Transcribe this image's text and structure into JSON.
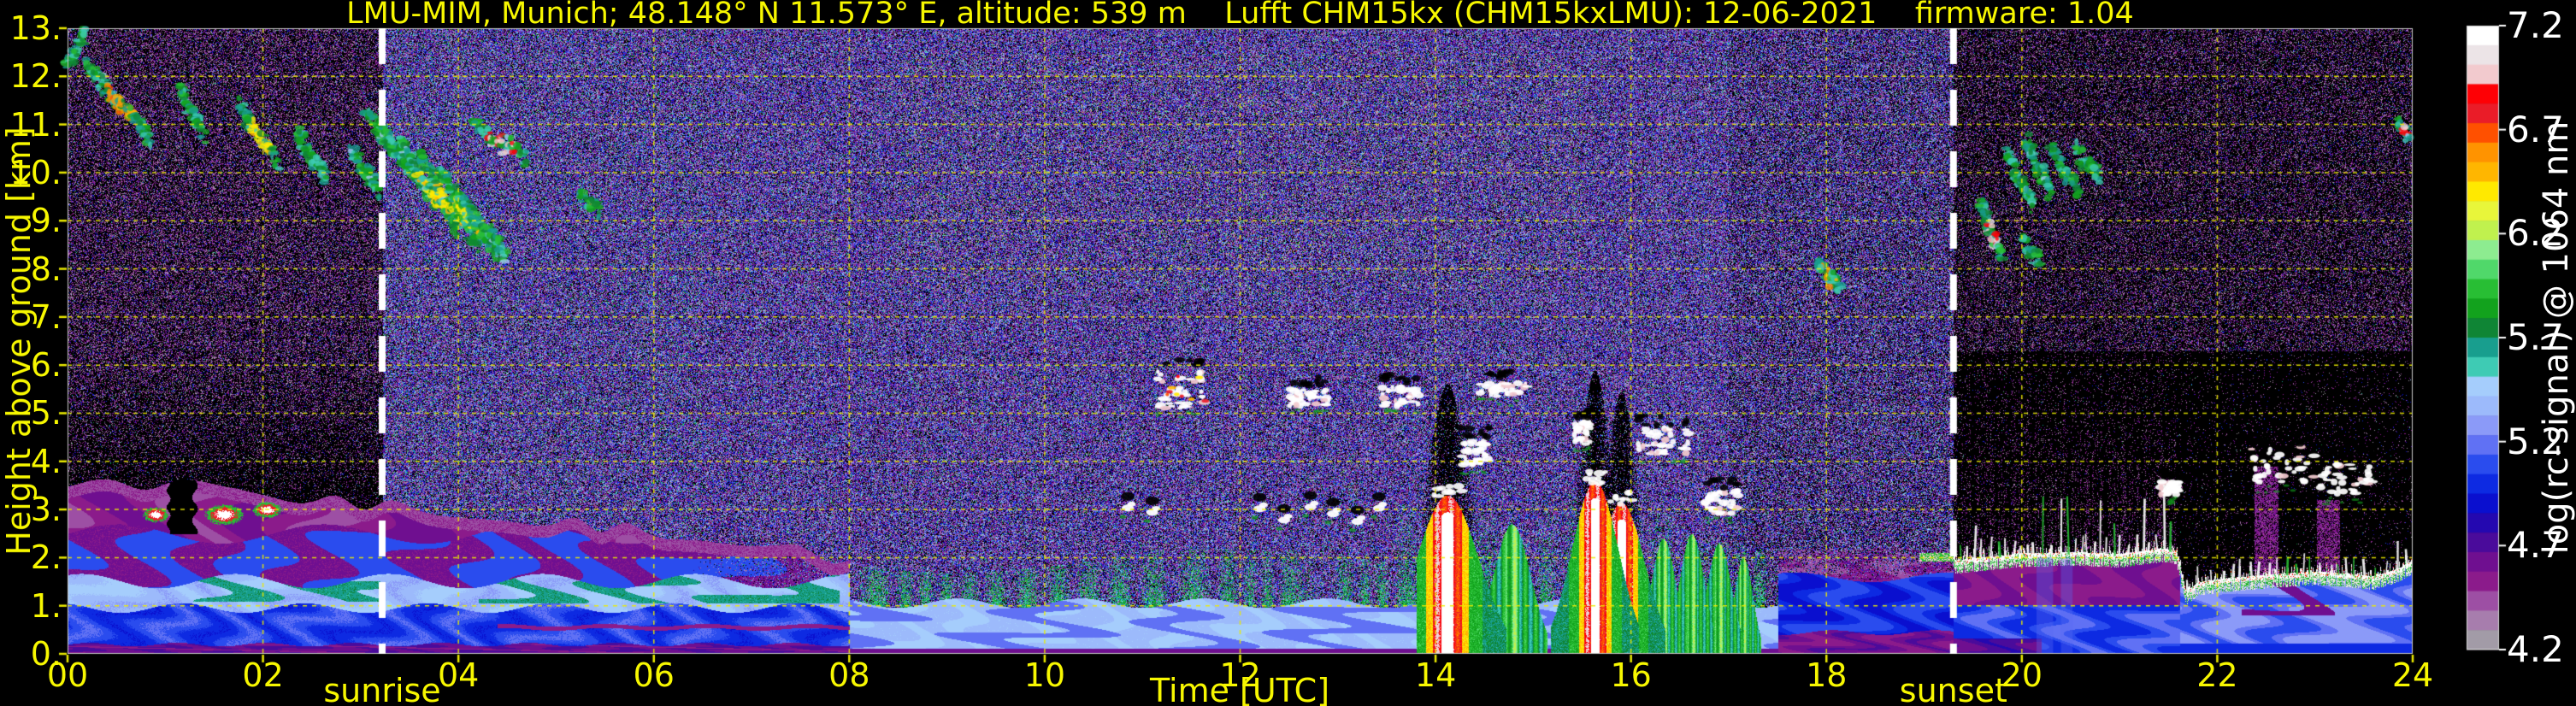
{
  "chart_data": {
    "type": "heatmap",
    "title": "LMU-MIM, Munich; 48.148° N 11.573° E, altitude: 539 m    Lufft CHM15kx (CHM15kxLMU): 12-06-2021    firmware: 1.04",
    "axes": {
      "x": {
        "label": "Time [UTC]",
        "range": [
          0,
          24
        ],
        "tick_values": [
          0,
          2,
          4,
          6,
          8,
          10,
          12,
          14,
          16,
          18,
          20,
          22,
          24
        ],
        "tick_labels": [
          "00",
          "02",
          "04",
          "06",
          "08",
          "10",
          "12",
          "14",
          "16",
          "18",
          "20",
          "22",
          "24"
        ]
      },
      "y": {
        "label": "Height above ground [km]",
        "range": [
          0,
          13
        ],
        "tick_values": [
          0,
          1,
          2,
          3,
          4,
          5,
          6,
          7,
          8,
          9,
          10,
          11,
          12,
          13
        ],
        "tick_labels": [
          "0.",
          "1.",
          "2.",
          "3.",
          "4.",
          "5.",
          "6.",
          "7.",
          "8.",
          "9.",
          "10.",
          "11.",
          "12.",
          "13."
        ]
      }
    },
    "grid": {
      "color": "#ebeb00",
      "x_step_hours": 2,
      "y_step_km": 1
    },
    "events": {
      "sunrise": {
        "label": "sunrise",
        "hour": 3.22
      },
      "sunset": {
        "label": "sunset",
        "hour": 19.3
      }
    },
    "colorbar": {
      "label": "log(rc-signal) @ 1064 nm",
      "range": [
        4.2,
        7.2
      ],
      "tick_labels": [
        "7.2",
        "6.7",
        "6.2",
        "5.7",
        "5.2",
        "4.7",
        "4.2"
      ],
      "colors_bottom_to_top": [
        "#a29ba7",
        "#a77dad",
        "#9d4fa4",
        "#8b1b8b",
        "#6f0f90",
        "#4a0b9b",
        "#2408b0",
        "#0a0fcf",
        "#0d2ae2",
        "#2a4cee",
        "#6071f4",
        "#8b9af8",
        "#9cbafb",
        "#a5cdfc",
        "#3ecbb4",
        "#189e8e",
        "#0f8535",
        "#12a21d",
        "#28be34",
        "#50d86a",
        "#8dec90",
        "#c0f14e",
        "#e8f63a",
        "#ffe900",
        "#ffb600",
        "#ff9300",
        "#ff5000",
        "#ea1c28",
        "#fe0005",
        "#f2cace",
        "#ece4e7",
        "#ffffff"
      ]
    },
    "features": {
      "boundary_layer_top": [
        [
          0,
          3.5
        ],
        [
          1,
          3.55
        ],
        [
          1.8,
          3.4
        ],
        [
          2.6,
          3.2
        ],
        [
          3.2,
          3.1
        ],
        [
          4,
          2.95
        ],
        [
          5,
          2.75
        ],
        [
          6,
          2.55
        ],
        [
          6.8,
          2.35
        ],
        [
          7.6,
          2.1
        ],
        [
          8,
          1.95
        ]
      ],
      "teal_patches": [
        {
          "t": [
            1.2,
            3.2
          ],
          "h": [
            1.1,
            1.9
          ]
        },
        {
          "t": [
            4.2,
            7.9
          ],
          "h": [
            1.05,
            1.8
          ]
        }
      ],
      "early_cloud_tops": [
        {
          "t": [
            0.78,
            1.02
          ],
          "h": [
            2.75,
            3.05
          ]
        },
        {
          "t": [
            1.42,
            1.78
          ],
          "h": [
            2.7,
            3.1
          ]
        },
        {
          "t": [
            1.9,
            2.18
          ],
          "h": [
            2.85,
            3.15
          ]
        }
      ],
      "early_black_notch": {
        "t": [
          1.03,
          1.3
        ],
        "h": [
          2.5,
          3.7
        ]
      },
      "showers": [
        {
          "t": 14.12,
          "width_h": 0.2,
          "top_km": 3.3,
          "soft": false
        },
        {
          "t": 14.78,
          "width_h": 0.12,
          "top_km": 2.7,
          "soft": true
        },
        {
          "t": 15.63,
          "width_h": 0.15,
          "top_km": 3.6,
          "soft": false
        },
        {
          "t": 15.9,
          "width_h": 0.15,
          "top_km": 3.15,
          "soft": false
        },
        {
          "t": 16.33,
          "width_h": 0.08,
          "top_km": 2.4,
          "soft": true
        },
        {
          "t": 16.62,
          "width_h": 0.08,
          "top_km": 2.5,
          "soft": true
        },
        {
          "t": 16.9,
          "width_h": 0.08,
          "top_km": 2.3,
          "soft": true
        },
        {
          "t": 17.15,
          "width_h": 0.06,
          "top_km": 2.0,
          "soft": true
        }
      ],
      "cirrus_streaks": [
        {
          "t": [
            0.0,
            0.18
          ],
          "h": [
            12.2,
            12.9
          ],
          "core": null
        },
        {
          "t": [
            0.2,
            0.85
          ],
          "h": [
            12.2,
            10.7
          ],
          "core": "orange"
        },
        {
          "t": [
            1.15,
            1.4
          ],
          "h": [
            11.7,
            10.8
          ],
          "core": null
        },
        {
          "t": [
            1.75,
            2.15
          ],
          "h": [
            11.4,
            10.2
          ],
          "core": "yellow"
        },
        {
          "t": [
            2.35,
            2.65
          ],
          "h": [
            10.8,
            9.9
          ],
          "core": null
        },
        {
          "t": [
            2.9,
            3.2
          ],
          "h": [
            10.4,
            9.6
          ],
          "core": null
        },
        {
          "t": [
            3.05,
            3.55
          ],
          "h": [
            11.2,
            10.0
          ],
          "core": null
        },
        {
          "t": [
            3.2,
            3.75
          ],
          "h": [
            10.9,
            9.4
          ],
          "core": null
        },
        {
          "t": [
            3.4,
            4.0
          ],
          "h": [
            10.6,
            8.8
          ],
          "core": "yellow"
        },
        {
          "t": [
            3.6,
            4.2
          ],
          "h": [
            10.3,
            8.5
          ],
          "core": "yellow"
        },
        {
          "t": [
            3.8,
            4.4
          ],
          "h": [
            10.0,
            8.3
          ],
          "core": "yellow"
        },
        {
          "t": [
            4.0,
            4.5
          ],
          "h": [
            9.5,
            8.25
          ],
          "core": null
        },
        {
          "t": [
            4.15,
            4.7
          ],
          "h": [
            11.0,
            10.3
          ],
          "core": "red"
        },
        {
          "t": [
            5.25,
            5.45
          ],
          "h": [
            9.5,
            9.2
          ],
          "core": "orange"
        },
        {
          "t": [
            17.9,
            18.15
          ],
          "h": [
            8.1,
            7.6
          ],
          "core": "orange"
        },
        {
          "t": [
            19.58,
            19.8
          ],
          "h": [
            9.3,
            8.2
          ],
          "core": "red"
        },
        {
          "t": [
            19.85,
            20.12
          ],
          "h": [
            10.4,
            9.3
          ],
          "core": null
        },
        {
          "t": [
            20.05,
            20.3
          ],
          "h": [
            10.6,
            9.6
          ],
          "core": null
        },
        {
          "t": [
            20.3,
            20.58
          ],
          "h": [
            10.5,
            9.6
          ],
          "core": null
        },
        {
          "t": [
            20.55,
            20.8
          ],
          "h": [
            10.45,
            9.9
          ],
          "core": null
        },
        {
          "t": [
            20.0,
            20.2
          ],
          "h": [
            8.6,
            8.1
          ],
          "core": null
        },
        {
          "t": [
            23.85,
            23.97
          ],
          "h": [
            11.0,
            10.75
          ],
          "core": "red"
        }
      ],
      "mid_clouds": [
        {
          "t": [
            11.15,
            11.65
          ],
          "h": [
            5.1,
            5.9
          ],
          "warm": true
        },
        {
          "t": [
            12.5,
            12.9
          ],
          "h": [
            5.15,
            5.5
          ],
          "warm": false
        },
        {
          "t": [
            13.45,
            13.85
          ],
          "h": [
            5.15,
            5.55
          ],
          "warm": false
        },
        {
          "t": [
            14.45,
            14.95
          ],
          "h": [
            5.35,
            5.65
          ],
          "warm": false
        },
        {
          "t": [
            14.25,
            14.55
          ],
          "h": [
            3.9,
            4.45
          ],
          "warm": false
        },
        {
          "t": [
            15.42,
            15.6
          ],
          "h": [
            4.35,
            4.85
          ],
          "warm": false
        },
        {
          "t": [
            16.05,
            16.6
          ],
          "h": [
            4.15,
            4.7
          ],
          "warm": false
        },
        {
          "t": [
            16.75,
            17.1
          ],
          "h": [
            2.9,
            3.4
          ],
          "warm": false
        },
        {
          "t": [
            22.35,
            23.0
          ],
          "h": [
            3.55,
            4.3
          ],
          "warm": false
        },
        {
          "t": [
            23.05,
            23.6
          ],
          "h": [
            3.3,
            3.95
          ],
          "warm": false
        },
        {
          "t": [
            21.42,
            21.6
          ],
          "h": [
            3.3,
            3.6
          ],
          "warm": false
        }
      ],
      "cumulus_times": [
        10.85,
        11.1,
        12.2,
        12.45,
        12.72,
        12.95,
        13.2,
        13.42
      ],
      "cumulus_height_km": 2.9,
      "night_stratus_top": [
        [
          19.3,
          1.95
        ],
        [
          20.0,
          2.1
        ],
        [
          20.6,
          2.12
        ],
        [
          21.0,
          2.08
        ],
        [
          21.45,
          2.2
        ],
        [
          21.58,
          2.15
        ],
        [
          21.68,
          1.3
        ],
        [
          21.8,
          1.5
        ],
        [
          22.1,
          1.58
        ],
        [
          22.5,
          1.65
        ],
        [
          23.0,
          1.72
        ],
        [
          23.3,
          1.68
        ],
        [
          23.6,
          1.62
        ],
        [
          23.85,
          1.78
        ],
        [
          24,
          1.95
        ]
      ],
      "night_virga": [
        {
          "t": [
            20.15,
            20.32
          ]
        },
        {
          "t": [
            20.4,
            20.52
          ]
        }
      ],
      "night_purple_columns": [
        {
          "t": [
            22.38,
            22.62
          ],
          "top_km": 3.9
        },
        {
          "t": [
            23.02,
            23.25
          ],
          "top_km": 3.2
        }
      ],
      "night_spikes": [
        {
          "t": [
            19.38,
            21.55
          ],
          "step": 0.07,
          "max_len_km": 1.1
        },
        {
          "t": [
            21.7,
            23.95
          ],
          "step": 0.1,
          "max_len_km": 0.5
        }
      ]
    }
  }
}
